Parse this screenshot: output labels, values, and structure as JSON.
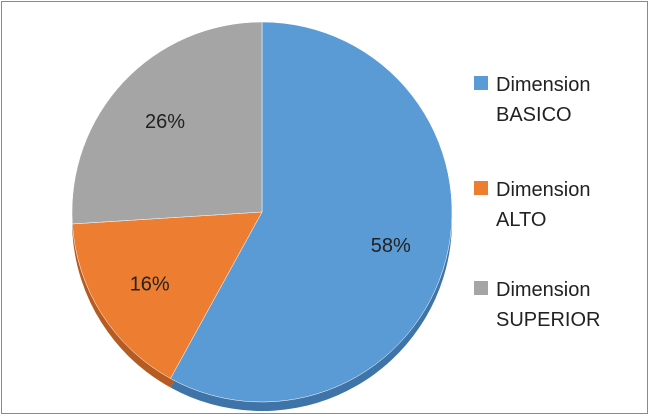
{
  "chart_data": {
    "type": "pie",
    "slices": [
      {
        "label": "Dimension\nBASICO",
        "value": 58,
        "display": "58%",
        "color": "#5b9bd5",
        "shadow": "#3f74a8"
      },
      {
        "label": "Dimension\nALTO",
        "value": 16,
        "display": "16%",
        "color": "#ed7d31",
        "shadow": "#b65c22"
      },
      {
        "label": "Dimension\nSUPERIOR",
        "value": 26,
        "display": "26%",
        "color": "#a5a5a5",
        "shadow": "#7a7a7a"
      }
    ],
    "legend_position": "right",
    "start_angle": "12 o'clock, clockwise"
  }
}
